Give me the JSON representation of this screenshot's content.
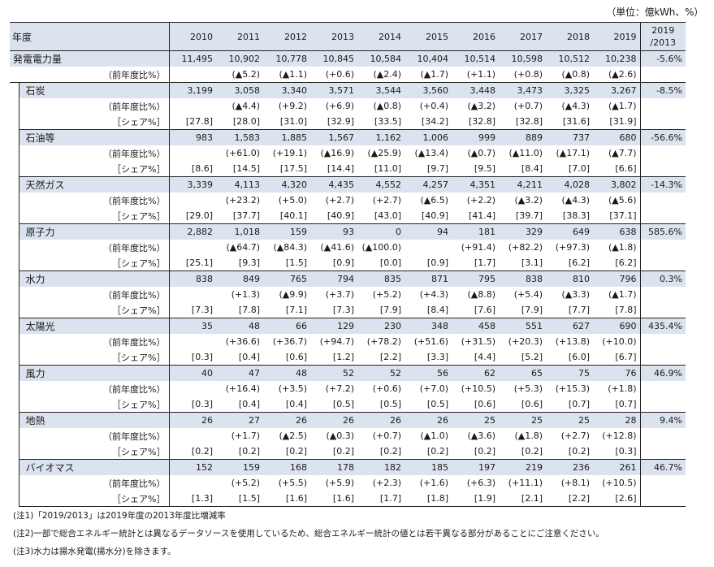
{
  "unit_note": "（単位：億kWh、%）",
  "header": {
    "label": "年度",
    "years": [
      "2010",
      "2011",
      "2012",
      "2013",
      "2014",
      "2015",
      "2016",
      "2017",
      "2018",
      "2019"
    ],
    "ratio_line1": "2019",
    "ratio_line2": "/2013"
  },
  "labels": {
    "yoy": "（前年度比%）",
    "share": "［シェア%］"
  },
  "total": {
    "name": "発電電力量",
    "values": [
      "11,495",
      "10,902",
      "10,778",
      "10,845",
      "10,584",
      "10,404",
      "10,514",
      "10,598",
      "10,512",
      "10,238"
    ],
    "yoy": [
      "",
      "(▲5.2)",
      "(▲1.1)",
      "(+0.6)",
      "(▲2.4)",
      "(▲1.7)",
      "(+1.1)",
      "(+0.8)",
      "(▲0.8)",
      "(▲2.6)"
    ],
    "ratio": "-5.6%"
  },
  "sources": [
    {
      "name": "石炭",
      "values": [
        "3,199",
        "3,058",
        "3,340",
        "3,571",
        "3,544",
        "3,560",
        "3,448",
        "3,473",
        "3,325",
        "3,267"
      ],
      "yoy": [
        "",
        "(▲4.4)",
        "(+9.2)",
        "(+6.9)",
        "(▲0.8)",
        "(+0.4)",
        "(▲3.2)",
        "(+0.7)",
        "(▲4.3)",
        "(▲1.7)"
      ],
      "share": [
        "[27.8]",
        "[28.0]",
        "[31.0]",
        "[32.9]",
        "[33.5]",
        "[34.2]",
        "[32.8]",
        "[32.8]",
        "[31.6]",
        "[31.9]"
      ],
      "ratio": "-8.5%"
    },
    {
      "name": "石油等",
      "values": [
        "983",
        "1,583",
        "1,885",
        "1,567",
        "1,162",
        "1,006",
        "999",
        "889",
        "737",
        "680"
      ],
      "yoy": [
        "",
        "(+61.0)",
        "(+19.1)",
        "(▲16.9)",
        "(▲25.9)",
        "(▲13.4)",
        "(▲0.7)",
        "(▲11.0)",
        "(▲17.1)",
        "(▲7.7)"
      ],
      "share": [
        "[8.6]",
        "[14.5]",
        "[17.5]",
        "[14.4]",
        "[11.0]",
        "[9.7]",
        "[9.5]",
        "[8.4]",
        "[7.0]",
        "[6.6]"
      ],
      "ratio": "-56.6%"
    },
    {
      "name": "天然ガス",
      "values": [
        "3,339",
        "4,113",
        "4,320",
        "4,435",
        "4,552",
        "4,257",
        "4,351",
        "4,211",
        "4,028",
        "3,802"
      ],
      "yoy": [
        "",
        "(+23.2)",
        "(+5.0)",
        "(+2.7)",
        "(+2.7)",
        "(▲6.5)",
        "(+2.2)",
        "(▲3.2)",
        "(▲4.3)",
        "(▲5.6)"
      ],
      "share": [
        "[29.0]",
        "[37.7]",
        "[40.1]",
        "[40.9]",
        "[43.0]",
        "[40.9]",
        "[41.4]",
        "[39.7]",
        "[38.3]",
        "[37.1]"
      ],
      "ratio": "-14.3%"
    },
    {
      "name": "原子力",
      "values": [
        "2,882",
        "1,018",
        "159",
        "93",
        "0",
        "94",
        "181",
        "329",
        "649",
        "638"
      ],
      "yoy": [
        "",
        "(▲64.7)",
        "(▲84.3)",
        "(▲41.6)",
        "(▲100.0)",
        "",
        "(+91.4)",
        "(+82.2)",
        "(+97.3)",
        "(▲1.8)"
      ],
      "share": [
        "[25.1]",
        "[9.3]",
        "[1.5]",
        "[0.9]",
        "[0.0]",
        "[0.9]",
        "[1.7]",
        "[3.1]",
        "[6.2]",
        "[6.2]"
      ],
      "ratio": "585.6%"
    },
    {
      "name": "水力",
      "values": [
        "838",
        "849",
        "765",
        "794",
        "835",
        "871",
        "795",
        "838",
        "810",
        "796"
      ],
      "yoy": [
        "",
        "(+1.3)",
        "(▲9.9)",
        "(+3.7)",
        "(+5.2)",
        "(+4.3)",
        "(▲8.8)",
        "(+5.4)",
        "(▲3.3)",
        "(▲1.7)"
      ],
      "share": [
        "[7.3]",
        "[7.8]",
        "[7.1]",
        "[7.3]",
        "[7.9]",
        "[8.4]",
        "[7.6]",
        "[7.9]",
        "[7.7]",
        "[7.8]"
      ],
      "ratio": "0.3%"
    },
    {
      "name": "太陽光",
      "values": [
        "35",
        "48",
        "66",
        "129",
        "230",
        "348",
        "458",
        "551",
        "627",
        "690"
      ],
      "yoy": [
        "",
        "(+36.6)",
        "(+36.7)",
        "(+94.7)",
        "(+78.2)",
        "(+51.6)",
        "(+31.5)",
        "(+20.3)",
        "(+13.8)",
        "(+10.0)"
      ],
      "share": [
        "[0.3]",
        "[0.4]",
        "[0.6]",
        "[1.2]",
        "[2.2]",
        "[3.3]",
        "[4.4]",
        "[5.2]",
        "[6.0]",
        "[6.7]"
      ],
      "ratio": "435.4%"
    },
    {
      "name": "風力",
      "values": [
        "40",
        "47",
        "48",
        "52",
        "52",
        "56",
        "62",
        "65",
        "75",
        "76"
      ],
      "yoy": [
        "",
        "(+16.4)",
        "(+3.5)",
        "(+7.2)",
        "(+0.6)",
        "(+7.0)",
        "(+10.5)",
        "(+5.3)",
        "(+15.3)",
        "(+1.8)"
      ],
      "share": [
        "[0.3]",
        "[0.4]",
        "[0.4]",
        "[0.5]",
        "[0.5]",
        "[0.5]",
        "[0.6]",
        "[0.6]",
        "[0.7]",
        "[0.7]"
      ],
      "ratio": "46.9%"
    },
    {
      "name": "地熱",
      "values": [
        "26",
        "27",
        "26",
        "26",
        "26",
        "26",
        "25",
        "25",
        "25",
        "28"
      ],
      "yoy": [
        "",
        "(+1.7)",
        "(▲2.5)",
        "(▲0.3)",
        "(+0.7)",
        "(▲1.0)",
        "(▲3.6)",
        "(▲1.8)",
        "(+2.7)",
        "(+12.8)"
      ],
      "share": [
        "[0.2]",
        "[0.2]",
        "[0.2]",
        "[0.2]",
        "[0.2]",
        "[0.2]",
        "[0.2]",
        "[0.2]",
        "[0.2]",
        "[0.3]"
      ],
      "ratio": "9.4%"
    },
    {
      "name": "バイオマス",
      "values": [
        "152",
        "159",
        "168",
        "178",
        "182",
        "185",
        "197",
        "219",
        "236",
        "261"
      ],
      "yoy": [
        "",
        "(+5.2)",
        "(+5.5)",
        "(+5.9)",
        "(+2.3)",
        "(+1.6)",
        "(+6.3)",
        "(+11.1)",
        "(+8.1)",
        "(+10.5)"
      ],
      "share": [
        "[1.3]",
        "[1.5]",
        "[1.6]",
        "[1.6]",
        "[1.7]",
        "[1.8]",
        "[1.9]",
        "[2.1]",
        "[2.2]",
        "[2.6]"
      ],
      "ratio": "46.7%"
    }
  ],
  "notes": [
    "(注1)「2019/2013」は2019年度の2013年度比増減率",
    "(注2)一部で総合エネルギー統計とは異なるデータソースを使用しているため、総合エネルギー統計の値とは若干異なる部分があることにご注意ください。",
    "(注3)水力は揚水発電(揚水分)を除きます。"
  ]
}
